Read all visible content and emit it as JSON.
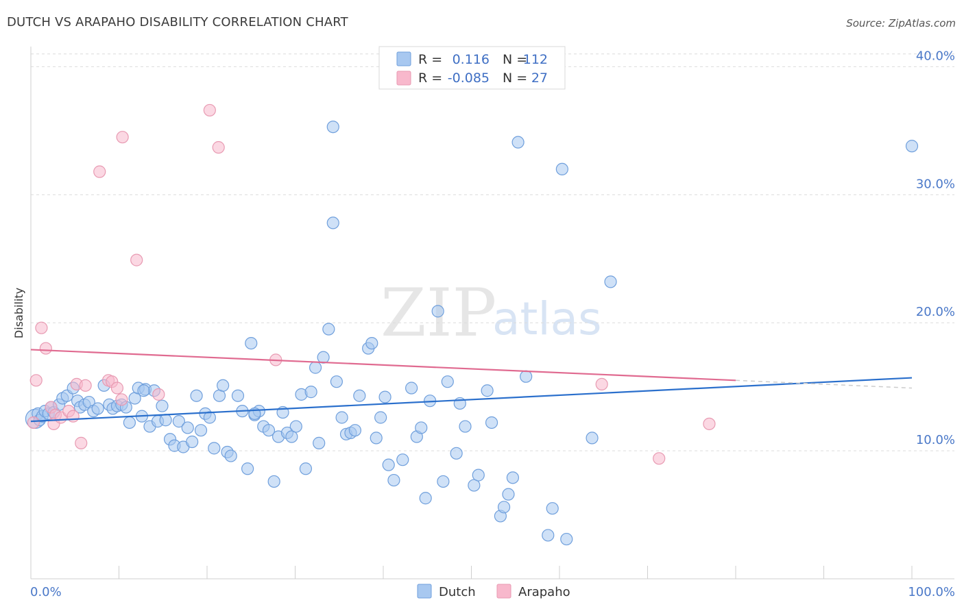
{
  "header": {
    "title": "DUTCH VS ARAPAHO DISABILITY CORRELATION CHART",
    "source": "Source: ZipAtlas.com"
  },
  "watermark": {
    "zip": "ZIP",
    "atlas": "atlas"
  },
  "legend_box": {
    "rows": [
      {
        "r_label": "R =",
        "r_value": "0.116",
        "n_label": "N =",
        "n_value": "112",
        "color": "#a8c8f0"
      },
      {
        "r_label": "R =",
        "r_value": "-0.085",
        "n_label": "N =",
        "n_value": "27",
        "color": "#f8b8cc"
      }
    ]
  },
  "chart_data": {
    "type": "scatter",
    "title": "DUTCH VS ARAPAHO DISABILITY CORRELATION CHART",
    "xlabel": "",
    "ylabel": "Disability",
    "xlim": [
      0,
      100
    ],
    "ylim": [
      0,
      42
    ],
    "x_tick_labels": [
      "0.0%",
      "100.0%"
    ],
    "y_ticks": [
      10,
      20,
      30,
      40
    ],
    "y_tick_labels": [
      "10.0%",
      "20.0%",
      "30.0%",
      "40.0%"
    ],
    "grid": true,
    "legend_position": "bottom",
    "series": [
      {
        "name": "Dutch",
        "color": "#a8c8f0",
        "edge": "#6f9fdc",
        "trend_color": "#2a6fcc",
        "trend": {
          "x0": 0,
          "y0": 12.3,
          "x1": 100,
          "y1": 15.7
        },
        "points": [
          [
            0.5,
            12.5
          ],
          [
            0.8,
            12.9
          ],
          [
            1.0,
            12.4
          ],
          [
            1.3,
            12.7
          ],
          [
            1.6,
            13.1
          ],
          [
            2.0,
            12.9
          ],
          [
            2.3,
            13.4
          ],
          [
            2.6,
            13.0
          ],
          [
            3.2,
            13.6
          ],
          [
            3.6,
            14.1
          ],
          [
            4.1,
            14.3
          ],
          [
            4.8,
            14.9
          ],
          [
            5.3,
            13.9
          ],
          [
            5.6,
            13.4
          ],
          [
            6.1,
            13.6
          ],
          [
            6.6,
            13.8
          ],
          [
            7.1,
            13.1
          ],
          [
            7.6,
            13.3
          ],
          [
            8.3,
            15.1
          ],
          [
            8.9,
            13.6
          ],
          [
            9.3,
            13.3
          ],
          [
            9.8,
            13.5
          ],
          [
            10.3,
            13.6
          ],
          [
            10.8,
            13.4
          ],
          [
            11.2,
            12.2
          ],
          [
            11.8,
            14.1
          ],
          [
            12.2,
            14.9
          ],
          [
            12.6,
            12.7
          ],
          [
            13.0,
            14.8
          ],
          [
            13.5,
            11.9
          ],
          [
            14.0,
            14.7
          ],
          [
            14.4,
            12.3
          ],
          [
            14.9,
            13.5
          ],
          [
            15.3,
            12.4
          ],
          [
            15.8,
            10.9
          ],
          [
            16.3,
            10.4
          ],
          [
            16.8,
            12.3
          ],
          [
            17.3,
            10.3
          ],
          [
            17.8,
            11.8
          ],
          [
            18.3,
            10.7
          ],
          [
            18.8,
            14.3
          ],
          [
            19.3,
            11.6
          ],
          [
            19.8,
            12.9
          ],
          [
            20.3,
            12.6
          ],
          [
            20.8,
            10.2
          ],
          [
            21.4,
            14.3
          ],
          [
            21.8,
            15.1
          ],
          [
            22.3,
            9.9
          ],
          [
            22.7,
            9.6
          ],
          [
            23.5,
            14.3
          ],
          [
            24.0,
            13.1
          ],
          [
            24.6,
            8.6
          ],
          [
            25.0,
            18.4
          ],
          [
            25.4,
            12.8
          ],
          [
            25.9,
            13.1
          ],
          [
            26.4,
            11.9
          ],
          [
            27.0,
            11.6
          ],
          [
            27.6,
            7.6
          ],
          [
            28.1,
            11.1
          ],
          [
            28.6,
            13.0
          ],
          [
            29.1,
            11.4
          ],
          [
            29.6,
            11.1
          ],
          [
            30.1,
            11.9
          ],
          [
            30.7,
            14.4
          ],
          [
            31.2,
            8.6
          ],
          [
            31.8,
            14.6
          ],
          [
            32.3,
            16.5
          ],
          [
            32.7,
            10.6
          ],
          [
            33.2,
            17.3
          ],
          [
            33.8,
            19.5
          ],
          [
            34.3,
            27.8
          ],
          [
            34.7,
            15.4
          ],
          [
            35.3,
            12.6
          ],
          [
            35.8,
            11.3
          ],
          [
            36.3,
            11.4
          ],
          [
            36.8,
            11.6
          ],
          [
            37.3,
            14.3
          ],
          [
            38.3,
            18.0
          ],
          [
            38.7,
            18.4
          ],
          [
            39.2,
            11.0
          ],
          [
            39.7,
            12.6
          ],
          [
            40.2,
            14.2
          ],
          [
            40.6,
            8.9
          ],
          [
            41.2,
            7.7
          ],
          [
            42.2,
            9.3
          ],
          [
            43.2,
            14.9
          ],
          [
            43.8,
            11.1
          ],
          [
            44.3,
            11.8
          ],
          [
            44.8,
            6.3
          ],
          [
            45.3,
            13.9
          ],
          [
            46.2,
            20.9
          ],
          [
            46.8,
            7.6
          ],
          [
            47.3,
            15.4
          ],
          [
            48.3,
            9.8
          ],
          [
            48.7,
            13.7
          ],
          [
            49.3,
            11.9
          ],
          [
            50.3,
            7.3
          ],
          [
            50.8,
            8.1
          ],
          [
            51.8,
            14.7
          ],
          [
            52.3,
            12.2
          ],
          [
            53.3,
            4.9
          ],
          [
            53.7,
            5.6
          ],
          [
            54.2,
            6.6
          ],
          [
            54.7,
            7.9
          ],
          [
            55.3,
            34.1
          ],
          [
            56.2,
            15.8
          ],
          [
            58.7,
            3.4
          ],
          [
            59.2,
            5.5
          ],
          [
            60.3,
            32.0
          ],
          [
            60.8,
            3.1
          ],
          [
            63.7,
            11.0
          ],
          [
            65.8,
            23.2
          ],
          [
            34.3,
            35.3
          ],
          [
            100.0,
            33.8
          ],
          [
            25.4,
            12.9
          ],
          [
            12.8,
            14.7
          ]
        ]
      },
      {
        "name": "Arapaho",
        "color": "#f8b8cc",
        "edge": "#e89ab2",
        "trend_color": "#e06a90",
        "trend": {
          "x0": 0,
          "y0": 17.9,
          "x1": 80,
          "y1": 15.5
        },
        "trend_ext": {
          "x0": 80,
          "y0": 15.5,
          "x1": 100,
          "y1": 14.9
        },
        "points": [
          [
            0.3,
            12.2
          ],
          [
            0.6,
            15.5
          ],
          [
            1.2,
            19.6
          ],
          [
            1.7,
            18.0
          ],
          [
            2.3,
            13.4
          ],
          [
            2.8,
            12.8
          ],
          [
            2.6,
            12.1
          ],
          [
            3.4,
            12.6
          ],
          [
            4.3,
            13.1
          ],
          [
            4.8,
            12.7
          ],
          [
            5.2,
            15.2
          ],
          [
            5.7,
            10.6
          ],
          [
            6.2,
            15.1
          ],
          [
            7.8,
            31.8
          ],
          [
            8.8,
            15.5
          ],
          [
            9.2,
            15.4
          ],
          [
            9.8,
            14.9
          ],
          [
            10.3,
            14.0
          ],
          [
            10.4,
            34.5
          ],
          [
            12.0,
            24.9
          ],
          [
            14.5,
            14.4
          ],
          [
            20.3,
            36.6
          ],
          [
            21.3,
            33.7
          ],
          [
            27.8,
            17.1
          ],
          [
            64.8,
            15.2
          ],
          [
            77.0,
            12.1
          ],
          [
            71.3,
            9.4
          ]
        ]
      }
    ]
  },
  "bottom_legend": {
    "items": [
      {
        "label": "Dutch",
        "color": "#a8c8f0"
      },
      {
        "label": "Arapaho",
        "color": "#f8b8cc"
      }
    ]
  }
}
